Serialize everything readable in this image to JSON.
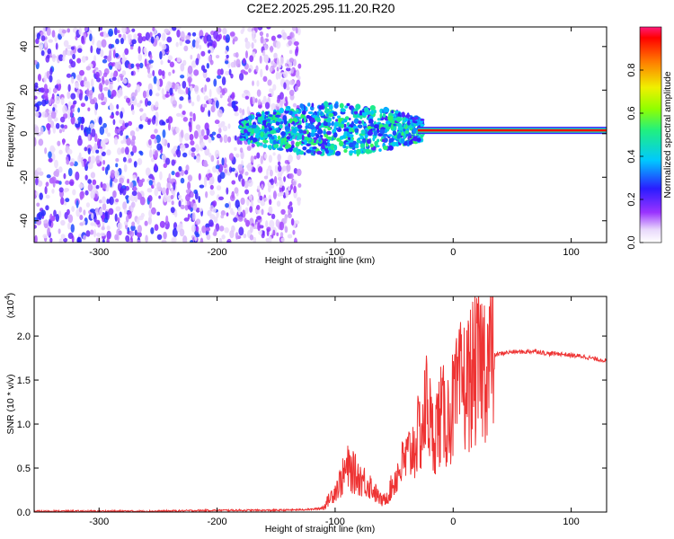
{
  "colors": {
    "signal": "#ee3333",
    "waterfall_dots": "#7a2af0",
    "waterfall_faint": "#c9b3f6",
    "axis": "#000000"
  },
  "chart_data": [
    {
      "type": "heatmap",
      "title": "C2E2.2025.295.11.20.R20",
      "xlabel": "Height of straight line (km)",
      "ylabel": "Frequency (Hz)",
      "xlim": [
        -355,
        130
      ],
      "ylim": [
        -50,
        49
      ],
      "xticks": [
        "-300",
        "-200",
        "-100",
        "0",
        "100"
      ],
      "yticks": [
        "-40",
        "-20",
        "0",
        "20",
        "40"
      ],
      "colorbar": {
        "label": "Normalized spectral amplitude",
        "ticks": [
          "0.0",
          "0.2",
          "0.4",
          "0.6",
          "0.8"
        ],
        "range": [
          0,
          1
        ]
      },
      "regions": [
        {
          "description": "scattered noise",
          "x": [
            -355,
            -130
          ],
          "freq": [
            -50,
            49
          ],
          "amplitude": [
            0.05,
            0.3
          ]
        },
        {
          "description": "clustered signal",
          "x": [
            -180,
            -25
          ],
          "freq": [
            -12,
            12
          ],
          "amplitude": [
            0.2,
            0.55
          ]
        },
        {
          "description": "stable carrier line",
          "x": [
            -30,
            130
          ],
          "freq": [
            1.5,
            1.5
          ],
          "amplitude": 0.95
        }
      ]
    },
    {
      "type": "line",
      "xlabel": "Height of straight line (km)",
      "ylabel": "SNR (10 * v/v)",
      "y_multiplier": "(x10",
      "y_multiplier_exp": "4",
      "y_multiplier_close": ")",
      "xlim": [
        -355,
        130
      ],
      "ylim": [
        0,
        2.45
      ],
      "xticks": [
        "-300",
        "-200",
        "-100",
        "0",
        "100"
      ],
      "yticks": [
        "0.0",
        "0.5",
        "1.0",
        "1.5",
        "2.0"
      ],
      "series": [
        {
          "x": [
            -355,
            -300,
            -250,
            -200,
            -150,
            -120,
            -110,
            -105,
            -100,
            -95,
            -90,
            -85,
            -80,
            -75,
            -70,
            -65,
            -60,
            -55,
            -50,
            -45,
            -40,
            -35,
            -30,
            -25,
            -22,
            -20,
            -18,
            -15,
            -10,
            -5,
            0,
            5,
            8,
            10,
            15,
            20,
            25,
            30,
            35,
            40,
            50,
            60,
            70,
            80,
            90,
            100,
            110,
            120,
            130
          ],
          "values": [
            0.01,
            0.01,
            0.01,
            0.02,
            0.02,
            0.03,
            0.05,
            0.15,
            0.25,
            0.35,
            0.5,
            0.45,
            0.4,
            0.35,
            0.3,
            0.2,
            0.12,
            0.2,
            0.35,
            0.5,
            0.6,
            0.7,
            0.85,
            1.0,
            1.3,
            1.1,
            0.85,
            0.95,
            1.1,
            1.05,
            1.2,
            1.35,
            1.5,
            1.4,
            1.55,
            1.6,
            1.7,
            1.75,
            1.78,
            1.8,
            1.82,
            1.82,
            1.83,
            1.8,
            1.8,
            1.78,
            1.77,
            1.74,
            1.72
          ]
        }
      ]
    }
  ]
}
